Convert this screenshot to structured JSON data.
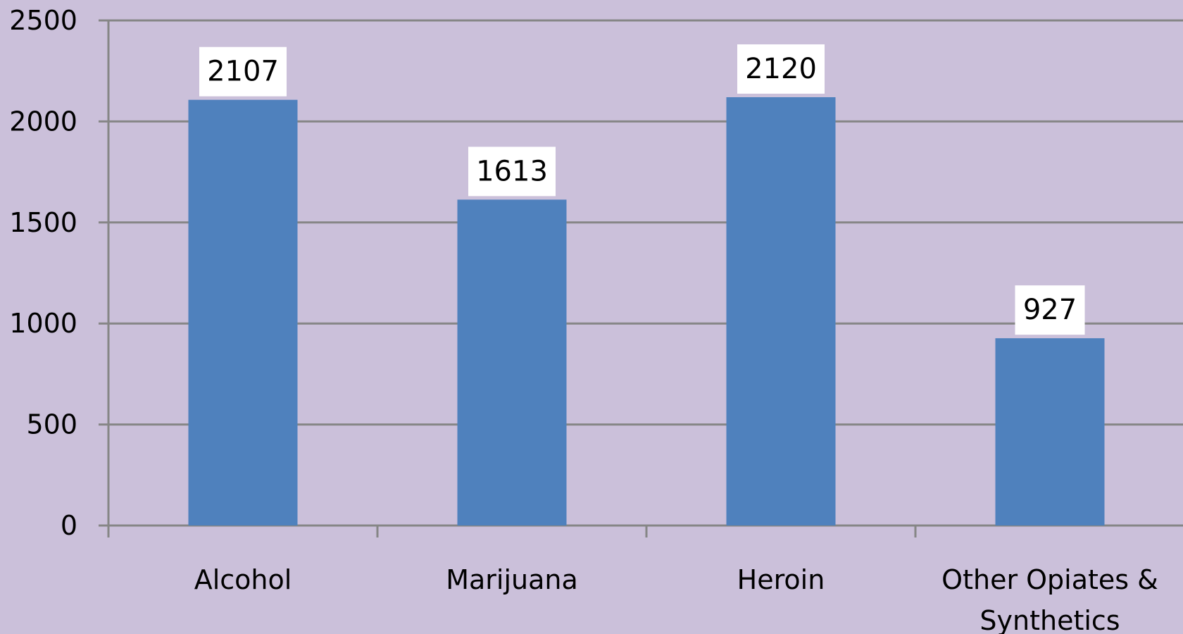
{
  "chart_data": {
    "type": "bar",
    "title": "",
    "xlabel": "",
    "ylabel": "",
    "categories": [
      [
        "Alcohol"
      ],
      [
        "Marijuana"
      ],
      [
        "Heroin"
      ],
      [
        "Other Opiates &",
        "Synthetics"
      ]
    ],
    "values": [
      2107,
      1613,
      2120,
      927
    ],
    "value_labels": [
      "2107",
      "1613",
      "2120",
      "927"
    ],
    "ylim": [
      0,
      2500
    ],
    "yticks": [
      "0",
      "500",
      "1000",
      "1500",
      "2000",
      "2500"
    ],
    "grid": true,
    "legend": "none",
    "colors": {
      "background": "#cbc0da",
      "bar": "#4f81bd",
      "gridline": "#868686",
      "label_box": "#ffffff"
    }
  }
}
